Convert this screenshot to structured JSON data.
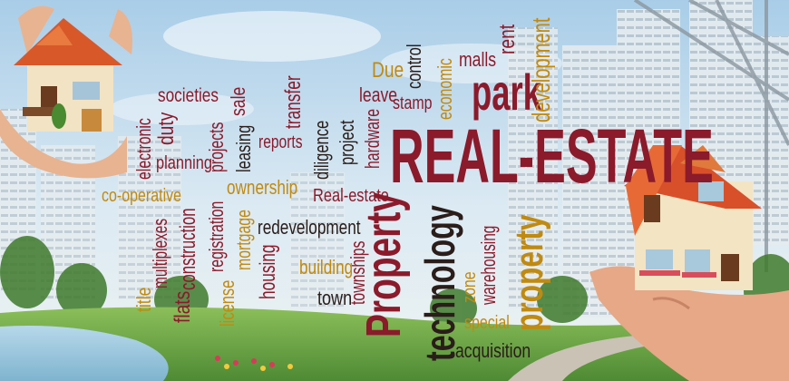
{
  "colors": {
    "maroon": "#8b1a2b",
    "olive": "#8a8a1a",
    "gold": "#c08a10",
    "dark": "#2a1d1a",
    "sky": "#cfe3f2",
    "grass": "#6fa84a"
  },
  "icons": [
    "house-in-hands-icon",
    "city-skyline",
    "park-landscape"
  ],
  "words": {
    "real_estate": "REAL-ESTATE",
    "property_big": "Property",
    "technology": "technology",
    "property_right": "property",
    "park": "park",
    "development": "development",
    "rent": "rent",
    "malls": "malls",
    "economic": "economic",
    "control": "control",
    "stamp": "stamp",
    "leave": "leave",
    "due": "Due",
    "hardware": "hardware",
    "project": "project",
    "diligence": "diligence",
    "transfer": "transfer",
    "reports": "reports",
    "sale": "sale",
    "leasing": "leasing",
    "projects": "projects",
    "societies": "societies",
    "duty": "duty",
    "electronic": "electronic",
    "planning": "planning",
    "ownership": "ownership",
    "co_operative": "co-operative",
    "construction": "construction",
    "multiplexes": "multiplexes",
    "flats": "flats",
    "registration": "registration",
    "mortgage": "mortgage",
    "license": "license",
    "housing": "housing",
    "redevelopment": "redevelopment",
    "real_estate_small": "Real-estate",
    "townships": "townships",
    "building": "building",
    "town": "town",
    "title": "title",
    "warehousing": "warehousing",
    "zone": "zone",
    "special": "special",
    "acquisition": "acquisition"
  }
}
